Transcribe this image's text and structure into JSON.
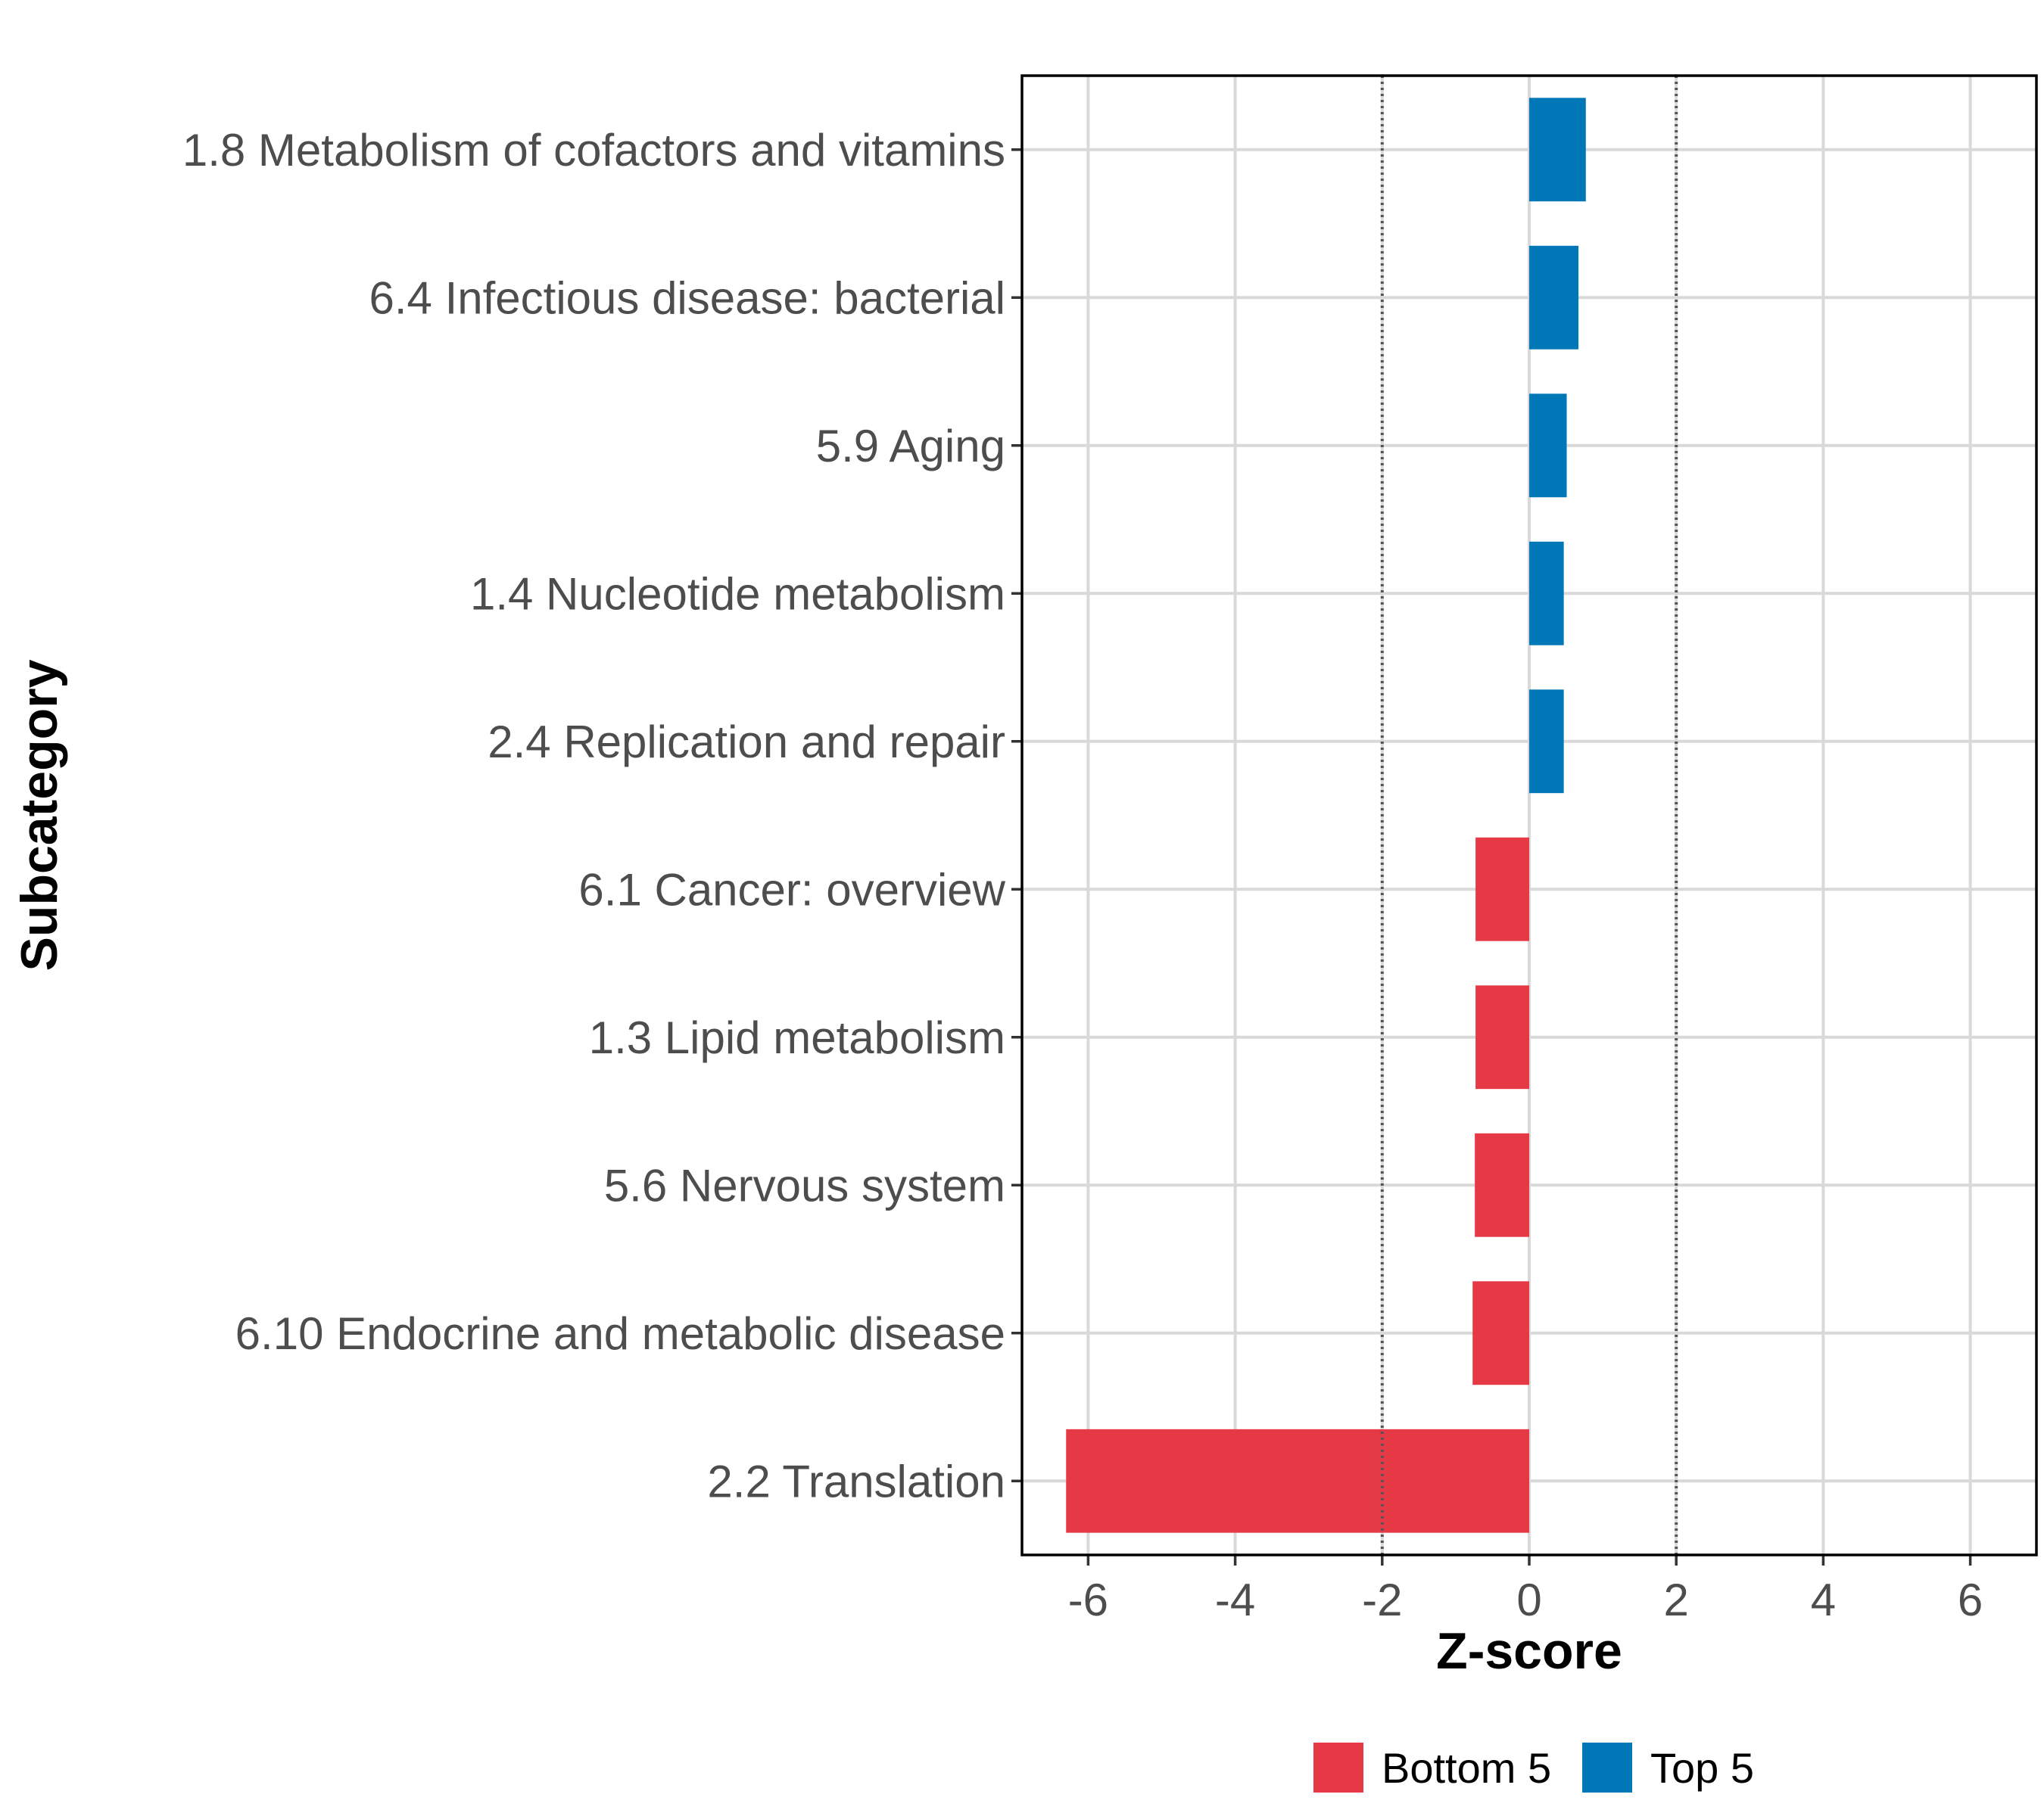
{
  "chart_data": {
    "type": "bar",
    "orientation": "horizontal",
    "title": "",
    "xlabel": "Z-score",
    "ylabel": "Subcategory",
    "xlim": [
      -6.9,
      6.9
    ],
    "xticks": [
      -6,
      -4,
      -2,
      0,
      2,
      4,
      6
    ],
    "reference_lines": [
      -2,
      2
    ],
    "grid": true,
    "categories": [
      "1.8 Metabolism of cofactors and vitamins",
      "6.4 Infectious disease: bacterial",
      "5.9 Aging",
      "1.4 Nucleotide metabolism",
      "2.4 Replication and repair",
      "6.1 Cancer: overview",
      "1.3 Lipid metabolism",
      "5.6 Nervous system",
      "6.10 Endocrine and metabolic disease",
      "2.2 Translation"
    ],
    "values": [
      0.77,
      0.67,
      0.51,
      0.47,
      0.47,
      -0.73,
      -0.73,
      -0.74,
      -0.77,
      -6.3
    ],
    "groups": [
      "Top 5",
      "Top 5",
      "Top 5",
      "Top 5",
      "Top 5",
      "Bottom 5",
      "Bottom 5",
      "Bottom 5",
      "Bottom 5",
      "Bottom 5"
    ],
    "legend": {
      "position": "bottom",
      "items": [
        {
          "label": "Bottom 5",
          "color": "#e63946"
        },
        {
          "label": "Top 5",
          "color": "#0077b6"
        }
      ]
    }
  }
}
